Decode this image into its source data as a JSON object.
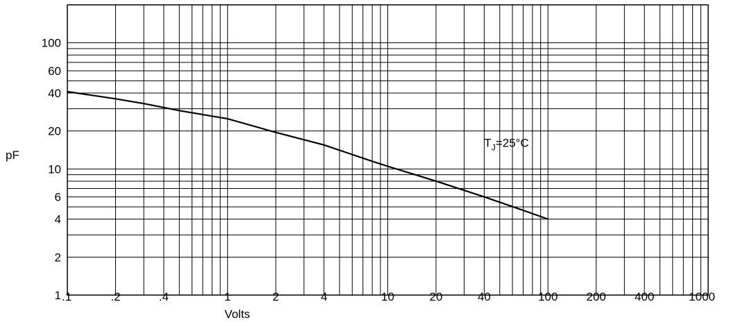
{
  "chart_data": {
    "type": "line",
    "title": "",
    "xlabel": "Volts",
    "ylabel": "pF",
    "x_scale": "log",
    "y_scale": "log",
    "xlim": [
      0.1,
      1000
    ],
    "ylim": [
      1,
      200
    ],
    "grid": true,
    "xticks": [
      {
        "value": 0.1,
        "label": ".1"
      },
      {
        "value": 0.2,
        "label": ".2"
      },
      {
        "value": 0.4,
        "label": ".4"
      },
      {
        "value": 1,
        "label": "1"
      },
      {
        "value": 2,
        "label": "2"
      },
      {
        "value": 4,
        "label": "4"
      },
      {
        "value": 10,
        "label": "10"
      },
      {
        "value": 20,
        "label": "20"
      },
      {
        "value": 40,
        "label": "40"
      },
      {
        "value": 100,
        "label": "100"
      },
      {
        "value": 200,
        "label": "200"
      },
      {
        "value": 400,
        "label": "400"
      },
      {
        "value": 1000,
        "label": "1000"
      }
    ],
    "yticks": [
      {
        "value": 1,
        "label": "1"
      },
      {
        "value": 2,
        "label": "2"
      },
      {
        "value": 4,
        "label": "4"
      },
      {
        "value": 6,
        "label": "6"
      },
      {
        "value": 10,
        "label": "10"
      },
      {
        "value": 20,
        "label": "20"
      },
      {
        "value": 40,
        "label": "40"
      },
      {
        "value": 60,
        "label": "60"
      },
      {
        "value": 100,
        "label": "100"
      }
    ],
    "series": [
      {
        "x": [
          0.1,
          0.2,
          0.3,
          0.5,
          1,
          2,
          4,
          8,
          10,
          20,
          40,
          70,
          100
        ],
        "y": [
          41,
          36,
          33,
          29,
          25,
          19.5,
          15.5,
          11.5,
          10.5,
          8,
          6,
          4.7,
          4
        ]
      }
    ],
    "annotations": [
      {
        "x": 40,
        "y": 15,
        "text_main": "T",
        "text_sub": "J",
        "text_rest": "=25°C"
      }
    ]
  }
}
